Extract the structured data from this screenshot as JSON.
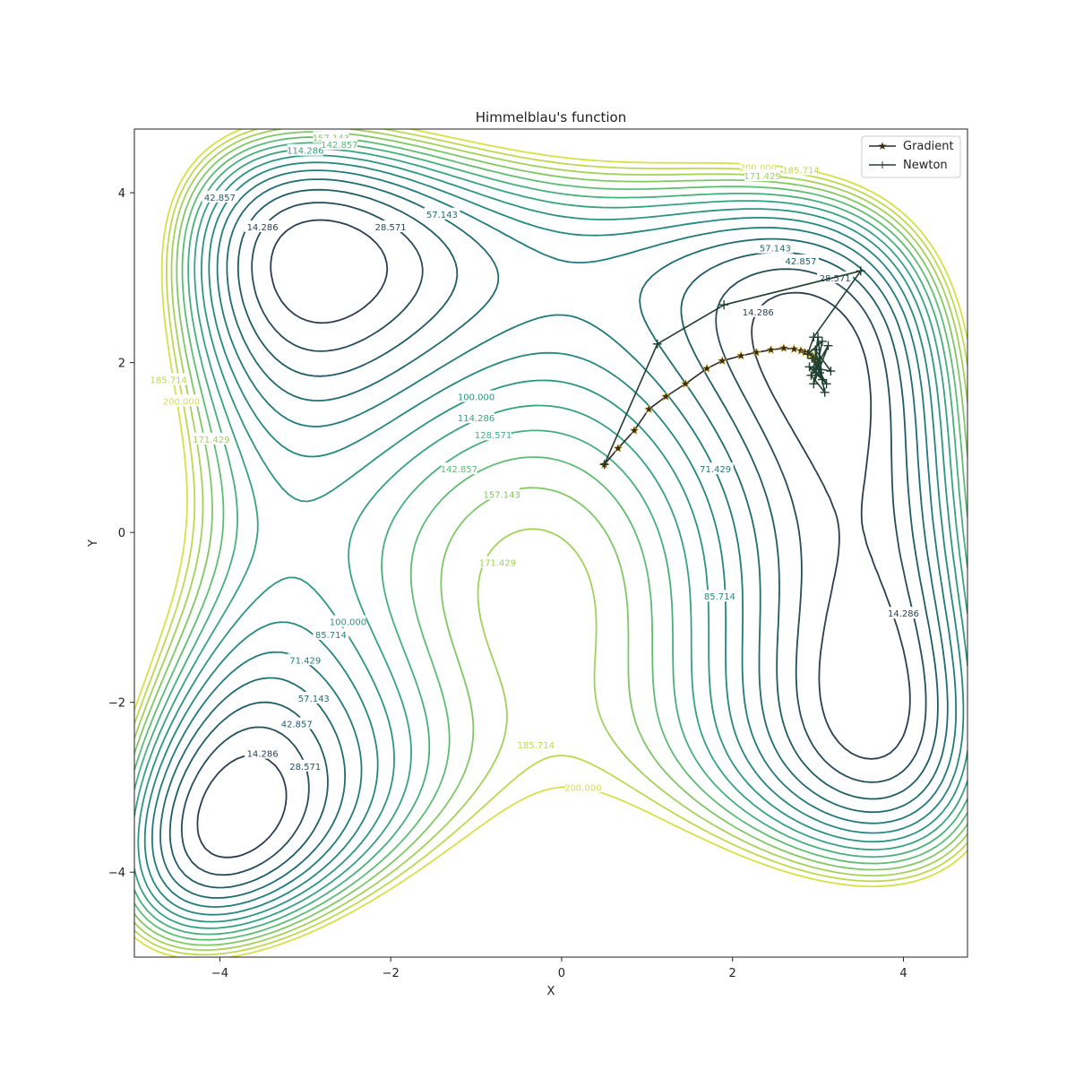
{
  "chart_data": {
    "type": "contour",
    "title": "Himmelblau's function",
    "xlabel": "X",
    "ylabel": "Y",
    "xlim": [
      -5.0,
      4.75
    ],
    "ylim": [
      -5.0,
      4.75
    ],
    "xticks": [
      -4,
      -2,
      0,
      2,
      4
    ],
    "yticks": [
      -4,
      -2,
      0,
      2,
      4
    ],
    "xtick_labels": [
      "−4",
      "−2",
      "0",
      "2",
      "4"
    ],
    "ytick_labels": [
      "−4",
      "−2",
      "0",
      "2",
      "4"
    ],
    "grid": false,
    "legend_position": "top-right",
    "function": "(x^2 + y - 11)^2 + (x + y^2 - 7)^2",
    "colormap": [
      "#2c3e50",
      "#1f5f68",
      "#21807f",
      "#2f9b82",
      "#52b87a",
      "#9fd05a",
      "#d4e147"
    ],
    "levels": [
      14.286,
      28.571,
      42.857,
      57.143,
      71.429,
      85.714,
      100.0,
      114.286,
      128.571,
      142.857,
      157.143,
      171.429,
      185.714,
      200.0
    ],
    "contour_labels": [
      {
        "text": "14.286",
        "x": -3.5,
        "y": 3.6
      },
      {
        "text": "28.571",
        "x": -2.0,
        "y": 3.6
      },
      {
        "text": "42.857",
        "x": -4.0,
        "y": 3.95
      },
      {
        "text": "57.143",
        "x": -1.4,
        "y": 3.75
      },
      {
        "text": "114.286",
        "x": -3.0,
        "y": 4.5
      },
      {
        "text": "157.143",
        "x": -2.7,
        "y": 4.65
      },
      {
        "text": "142.857",
        "x": -2.6,
        "y": 4.57
      },
      {
        "text": "57.143",
        "x": 2.5,
        "y": 3.35
      },
      {
        "text": "42.857",
        "x": 2.8,
        "y": 3.2
      },
      {
        "text": "28.571",
        "x": 3.2,
        "y": 3.0
      },
      {
        "text": "14.286",
        "x": 2.3,
        "y": 2.6
      },
      {
        "text": "200.000",
        "x": 2.3,
        "y": 4.3
      },
      {
        "text": "171.429",
        "x": 2.35,
        "y": 4.2
      },
      {
        "text": "185.714",
        "x": 2.8,
        "y": 4.27
      },
      {
        "text": "100.000",
        "x": -1.0,
        "y": 1.6
      },
      {
        "text": "114.286",
        "x": -1.0,
        "y": 1.35
      },
      {
        "text": "128.571",
        "x": -0.8,
        "y": 1.15
      },
      {
        "text": "142.857",
        "x": -1.2,
        "y": 0.75
      },
      {
        "text": "157.143",
        "x": -0.7,
        "y": 0.45
      },
      {
        "text": "171.429",
        "x": -0.75,
        "y": -0.35
      },
      {
        "text": "71.429",
        "x": 1.8,
        "y": 0.75
      },
      {
        "text": "85.714",
        "x": 1.85,
        "y": -0.75
      },
      {
        "text": "14.286",
        "x": 4.0,
        "y": -0.95
      },
      {
        "text": "100.000",
        "x": -2.5,
        "y": -1.05
      },
      {
        "text": "85.714",
        "x": -2.7,
        "y": -1.2
      },
      {
        "text": "71.429",
        "x": -3.0,
        "y": -1.5
      },
      {
        "text": "57.143",
        "x": -2.9,
        "y": -1.95
      },
      {
        "text": "42.857",
        "x": -3.1,
        "y": -2.25
      },
      {
        "text": "14.286",
        "x": -3.5,
        "y": -2.6
      },
      {
        "text": "28.571",
        "x": -3.0,
        "y": -2.75
      },
      {
        "text": "185.714",
        "x": -0.3,
        "y": -2.5
      },
      {
        "text": "200.000",
        "x": 0.25,
        "y": -3.0
      },
      {
        "text": "185.714",
        "x": -4.6,
        "y": 1.8
      },
      {
        "text": "200.000",
        "x": -4.45,
        "y": 1.55
      },
      {
        "text": "171.429",
        "x": -4.1,
        "y": 1.1
      }
    ],
    "series": [
      {
        "name": "Gradient",
        "marker": "star",
        "color": "#2b2b2b",
        "x": [
          0.5,
          0.66,
          0.85,
          1.02,
          1.22,
          1.45,
          1.7,
          1.88,
          2.1,
          2.28,
          2.45,
          2.6,
          2.72,
          2.8,
          2.85,
          2.9,
          2.93,
          2.95,
          2.97,
          2.98,
          2.99,
          3.0
        ],
        "y": [
          0.8,
          0.99,
          1.2,
          1.45,
          1.6,
          1.75,
          1.93,
          2.02,
          2.08,
          2.12,
          2.15,
          2.17,
          2.16,
          2.14,
          2.12,
          2.1,
          2.08,
          2.06,
          2.04,
          2.03,
          2.02,
          2.0
        ]
      },
      {
        "name": "Newton",
        "marker": "plus",
        "color": "#1f3f30",
        "x": [
          0.5,
          1.12,
          1.9,
          3.5,
          2.95,
          2.88,
          3.05,
          2.95,
          3.12,
          2.92,
          3.08,
          2.97,
          3.15,
          2.9,
          3.05,
          3.0,
          2.95,
          3.1,
          2.93,
          3.02,
          3.0
        ],
        "y": [
          0.8,
          2.22,
          2.68,
          3.08,
          2.3,
          2.1,
          2.25,
          1.75,
          2.2,
          1.85,
          1.65,
          2.15,
          1.9,
          1.95,
          1.8,
          2.3,
          1.92,
          1.75,
          2.05,
          1.88,
          2.0
        ]
      }
    ]
  }
}
